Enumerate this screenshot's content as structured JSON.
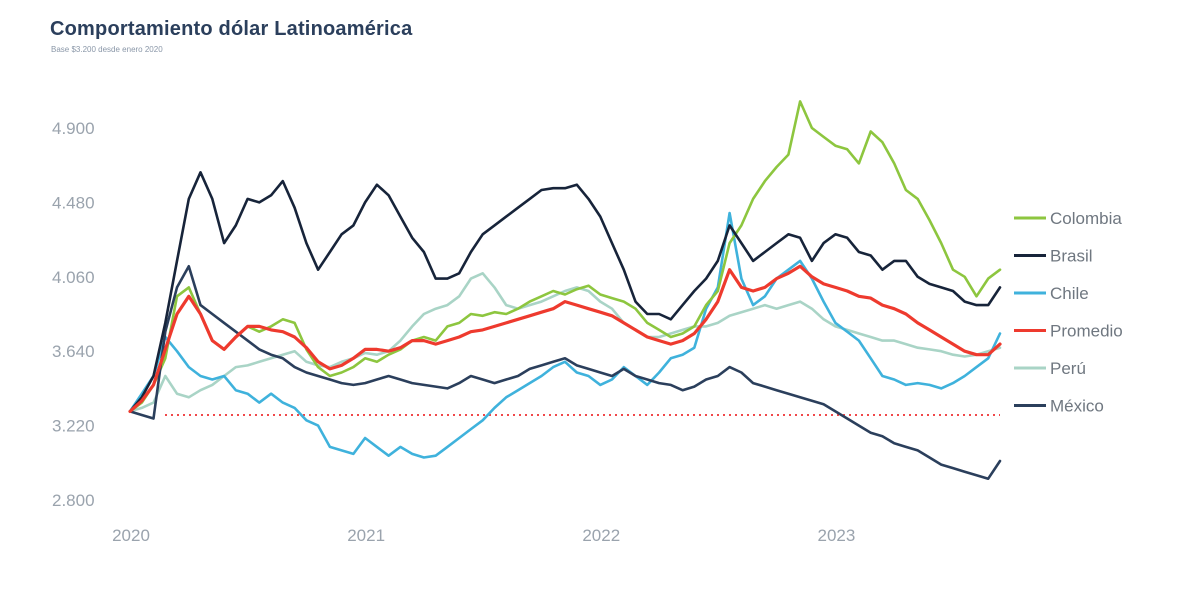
{
  "chart_data": {
    "type": "line",
    "title": "Comportamiento dólar Latinoamérica",
    "subtitle": "Base $3.200 desde enero 2020",
    "xlabel": "",
    "ylabel": "",
    "x_ticks": [
      "2020",
      "2021",
      "2022",
      "2023"
    ],
    "x_tick_values": [
      2020,
      2021,
      2022,
      2023
    ],
    "xlim": [
      2020,
      2023.7
    ],
    "y_ticks": [
      "2.800",
      "3.220",
      "3.640",
      "4.060",
      "4.480",
      "4.900"
    ],
    "y_tick_values": [
      2800,
      3220,
      3640,
      4060,
      4480,
      4900
    ],
    "ylim": [
      2800,
      4900
    ],
    "reference_line": {
      "value": 3280,
      "color": "#f0484a",
      "style": "dotted"
    },
    "legend_position": "right",
    "x": [
      2020.0,
      2020.05,
      2020.1,
      2020.15,
      2020.2,
      2020.25,
      2020.3,
      2020.35,
      2020.4,
      2020.45,
      2020.5,
      2020.55,
      2020.6,
      2020.65,
      2020.7,
      2020.75,
      2020.8,
      2020.85,
      2020.9,
      2020.95,
      2021.0,
      2021.05,
      2021.1,
      2021.15,
      2021.2,
      2021.25,
      2021.3,
      2021.35,
      2021.4,
      2021.45,
      2021.5,
      2021.55,
      2021.6,
      2021.65,
      2021.7,
      2021.75,
      2021.8,
      2021.85,
      2021.9,
      2021.95,
      2022.0,
      2022.05,
      2022.1,
      2022.15,
      2022.2,
      2022.25,
      2022.3,
      2022.35,
      2022.4,
      2022.45,
      2022.5,
      2022.55,
      2022.6,
      2022.65,
      2022.7,
      2022.75,
      2022.8,
      2022.85,
      2022.9,
      2022.95,
      2023.0,
      2023.05,
      2023.1,
      2023.15,
      2023.2,
      2023.25,
      2023.3,
      2023.35,
      2023.4,
      2023.45,
      2023.5,
      2023.55,
      2023.6,
      2023.65,
      2023.7
    ],
    "series": [
      {
        "name": "Colombia",
        "color": "#8dc63f",
        "values": [
          3300,
          3350,
          3450,
          3600,
          3950,
          4000,
          3850,
          3700,
          3650,
          3720,
          3780,
          3750,
          3780,
          3820,
          3800,
          3650,
          3550,
          3500,
          3520,
          3550,
          3600,
          3580,
          3620,
          3650,
          3700,
          3720,
          3700,
          3780,
          3800,
          3850,
          3840,
          3860,
          3850,
          3880,
          3920,
          3950,
          3980,
          3960,
          3990,
          4010,
          3960,
          3940,
          3920,
          3880,
          3800,
          3760,
          3720,
          3740,
          3780,
          3900,
          3980,
          4250,
          4350,
          4500,
          4600,
          4680,
          4750,
          5050,
          4900,
          4850,
          4800,
          4780,
          4700,
          4880,
          4820,
          4700,
          4550,
          4500,
          4380,
          4250,
          4100,
          4060,
          3950,
          4050,
          4100
        ]
      },
      {
        "name": "Brasil",
        "color": "#17243a",
        "values": [
          3300,
          3380,
          3500,
          3800,
          4150,
          4500,
          4650,
          4500,
          4250,
          4350,
          4500,
          4480,
          4520,
          4600,
          4450,
          4250,
          4100,
          4200,
          4300,
          4350,
          4480,
          4580,
          4520,
          4400,
          4280,
          4200,
          4050,
          4050,
          4080,
          4200,
          4300,
          4350,
          4400,
          4450,
          4500,
          4550,
          4560,
          4560,
          4580,
          4500,
          4400,
          4250,
          4100,
          3920,
          3850,
          3850,
          3820,
          3900,
          3980,
          4050,
          4150,
          4350,
          4250,
          4150,
          4200,
          4250,
          4300,
          4280,
          4150,
          4250,
          4300,
          4280,
          4200,
          4180,
          4100,
          4150,
          4150,
          4060,
          4020,
          4000,
          3980,
          3920,
          3900,
          3900,
          4000
        ]
      },
      {
        "name": "Chile",
        "color": "#3fb2dc",
        "values": [
          3300,
          3400,
          3500,
          3720,
          3640,
          3550,
          3500,
          3480,
          3500,
          3420,
          3400,
          3350,
          3400,
          3350,
          3320,
          3250,
          3220,
          3100,
          3080,
          3060,
          3150,
          3100,
          3050,
          3100,
          3060,
          3040,
          3050,
          3100,
          3150,
          3200,
          3250,
          3320,
          3380,
          3420,
          3460,
          3500,
          3550,
          3580,
          3520,
          3500,
          3450,
          3480,
          3550,
          3500,
          3450,
          3520,
          3600,
          3620,
          3660,
          3880,
          4000,
          4420,
          4050,
          3900,
          3950,
          4050,
          4100,
          4150,
          4050,
          3920,
          3800,
          3750,
          3700,
          3600,
          3500,
          3480,
          3450,
          3460,
          3450,
          3430,
          3460,
          3500,
          3550,
          3600,
          3740
        ]
      },
      {
        "name": "Promedio",
        "color": "#ee3a2e",
        "values": [
          3300,
          3360,
          3450,
          3650,
          3850,
          3950,
          3850,
          3700,
          3650,
          3720,
          3780,
          3780,
          3760,
          3750,
          3720,
          3660,
          3580,
          3540,
          3560,
          3600,
          3650,
          3650,
          3640,
          3660,
          3700,
          3700,
          3680,
          3700,
          3720,
          3750,
          3760,
          3780,
          3800,
          3820,
          3840,
          3860,
          3880,
          3920,
          3900,
          3880,
          3860,
          3840,
          3800,
          3760,
          3720,
          3700,
          3680,
          3700,
          3740,
          3820,
          3920,
          4100,
          4000,
          3980,
          4000,
          4050,
          4080,
          4120,
          4060,
          4020,
          4000,
          3980,
          3950,
          3940,
          3900,
          3880,
          3850,
          3800,
          3760,
          3720,
          3680,
          3640,
          3620,
          3620,
          3680
        ]
      },
      {
        "name": "Perú",
        "color": "#a9d4c6",
        "values": [
          3300,
          3320,
          3350,
          3500,
          3400,
          3380,
          3420,
          3450,
          3500,
          3550,
          3560,
          3580,
          3600,
          3620,
          3640,
          3580,
          3560,
          3550,
          3580,
          3600,
          3630,
          3620,
          3640,
          3700,
          3780,
          3850,
          3880,
          3900,
          3950,
          4050,
          4080,
          4000,
          3900,
          3880,
          3900,
          3920,
          3950,
          3980,
          4000,
          3980,
          3920,
          3880,
          3800,
          3760,
          3720,
          3720,
          3740,
          3760,
          3780,
          3780,
          3800,
          3840,
          3860,
          3880,
          3900,
          3880,
          3900,
          3920,
          3880,
          3820,
          3780,
          3760,
          3740,
          3720,
          3700,
          3700,
          3680,
          3660,
          3650,
          3640,
          3620,
          3610,
          3620,
          3640,
          3660
        ]
      },
      {
        "name": "México",
        "color": "#2b3f5c",
        "values": [
          3300,
          3280,
          3260,
          3750,
          4000,
          4120,
          3900,
          3850,
          3800,
          3750,
          3700,
          3650,
          3620,
          3600,
          3550,
          3520,
          3500,
          3480,
          3460,
          3450,
          3460,
          3480,
          3500,
          3480,
          3460,
          3450,
          3440,
          3430,
          3460,
          3500,
          3480,
          3460,
          3480,
          3500,
          3540,
          3560,
          3580,
          3600,
          3560,
          3540,
          3520,
          3500,
          3540,
          3500,
          3480,
          3460,
          3450,
          3420,
          3440,
          3480,
          3500,
          3550,
          3520,
          3460,
          3440,
          3420,
          3400,
          3380,
          3360,
          3340,
          3300,
          3260,
          3220,
          3180,
          3160,
          3120,
          3100,
          3080,
          3040,
          3000,
          2980,
          2960,
          2940,
          2920,
          3020
        ]
      }
    ]
  }
}
